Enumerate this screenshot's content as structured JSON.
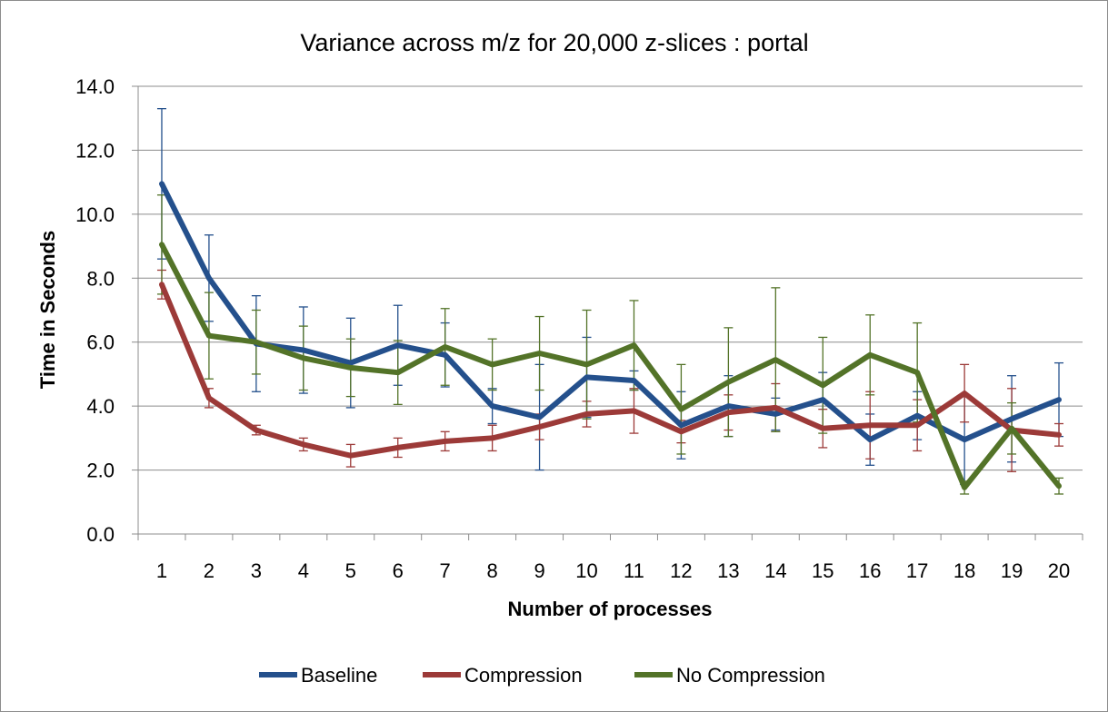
{
  "chart_data": {
    "type": "line",
    "title": "Variance across m/z for 20,000 z-slices : portal",
    "xlabel": "Number of processes",
    "ylabel": "Time in Seconds",
    "x": [
      1,
      2,
      3,
      4,
      5,
      6,
      7,
      8,
      9,
      10,
      11,
      12,
      13,
      14,
      15,
      16,
      17,
      18,
      19,
      20
    ],
    "ylim": [
      0,
      14
    ],
    "yticks": [
      "0.0",
      "2.0",
      "4.0",
      "6.0",
      "8.0",
      "10.0",
      "12.0",
      "14.0"
    ],
    "grid": "horizontal",
    "legend_position": "bottom",
    "series": [
      {
        "name": "Baseline",
        "color": "#24508c",
        "values": [
          10.95,
          8.0,
          5.95,
          5.75,
          5.35,
          5.9,
          5.6,
          4.0,
          3.65,
          4.9,
          4.8,
          3.4,
          4.0,
          3.75,
          4.2,
          2.95,
          3.7,
          2.95,
          3.6,
          4.2
        ],
        "error": [
          2.35,
          1.35,
          1.5,
          1.35,
          1.4,
          1.25,
          1.0,
          0.55,
          1.65,
          1.25,
          0.3,
          1.05,
          0.95,
          0.5,
          0.85,
          0.8,
          0.75,
          1.4,
          1.35,
          1.15
        ]
      },
      {
        "name": "Compression",
        "color": "#9c3a38",
        "values": [
          7.8,
          4.25,
          3.25,
          2.8,
          2.45,
          2.7,
          2.9,
          3.0,
          3.35,
          3.75,
          3.85,
          3.2,
          3.8,
          3.95,
          3.3,
          3.4,
          3.4,
          4.4,
          3.25,
          3.1
        ],
        "error": [
          0.45,
          0.3,
          0.15,
          0.2,
          0.35,
          0.3,
          0.3,
          0.4,
          0.4,
          0.4,
          0.7,
          0.35,
          0.55,
          0.75,
          0.6,
          1.05,
          0.8,
          0.9,
          1.3,
          0.35
        ]
      },
      {
        "name": "No Compression",
        "color": "#537328",
        "values": [
          9.05,
          6.2,
          6.0,
          5.5,
          5.2,
          5.05,
          5.85,
          5.3,
          5.65,
          5.3,
          5.9,
          3.9,
          4.75,
          5.45,
          4.65,
          5.6,
          5.05,
          1.45,
          3.3,
          1.5
        ],
        "error": [
          1.55,
          1.35,
          1.0,
          1.0,
          0.9,
          1.0,
          1.2,
          0.8,
          1.15,
          1.7,
          1.4,
          1.4,
          1.7,
          2.25,
          1.5,
          1.25,
          1.55,
          0.2,
          0.8,
          0.25
        ]
      }
    ]
  }
}
